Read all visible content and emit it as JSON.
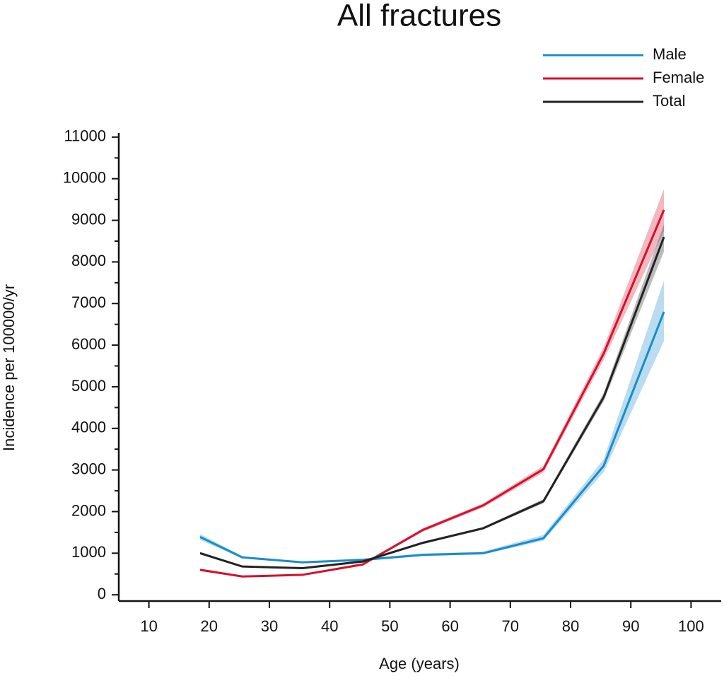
{
  "chart_data": {
    "type": "line",
    "title": "All fractures",
    "x_label": "Age (years)",
    "y_label": "Incidence per 100000/yr",
    "x": [
      18.5,
      25.5,
      35.5,
      45.5,
      55.5,
      65.5,
      75.5,
      85.5,
      95.5
    ],
    "series": [
      {
        "name": "Male",
        "color": "#1a8ccb",
        "values": [
          1390,
          900,
          780,
          840,
          960,
          1000,
          1360,
          3100,
          6800
        ],
        "ci_lower": [
          1320,
          870,
          760,
          810,
          930,
          970,
          1300,
          2950,
          6100
        ],
        "ci_upper": [
          1460,
          930,
          800,
          870,
          990,
          1040,
          1440,
          3260,
          7550
        ]
      },
      {
        "name": "Female",
        "color": "#d4112b",
        "values": [
          600,
          440,
          480,
          730,
          1560,
          2150,
          3020,
          5800,
          9250
        ],
        "ci_lower": [
          570,
          420,
          460,
          700,
          1520,
          2100,
          2940,
          5650,
          8750
        ],
        "ci_upper": [
          630,
          460,
          500,
          760,
          1600,
          2200,
          3100,
          5950,
          9750
        ]
      },
      {
        "name": "Total",
        "color": "#222222",
        "values": [
          1000,
          680,
          640,
          800,
          1250,
          1600,
          2250,
          4750,
          8600
        ],
        "ci_lower": [
          970,
          660,
          620,
          780,
          1220,
          1570,
          2200,
          4650,
          8250
        ],
        "ci_upper": [
          1030,
          700,
          660,
          820,
          1280,
          1630,
          2300,
          4850,
          8900
        ]
      }
    ],
    "xlim": [
      5,
      105
    ],
    "xticks": [
      10,
      20,
      30,
      40,
      50,
      60,
      70,
      80,
      90,
      100
    ],
    "ylim": [
      -150,
      11100
    ],
    "yticks": [
      0,
      1000,
      2000,
      3000,
      4000,
      5000,
      6000,
      7000,
      8000,
      9000,
      10000,
      11000
    ],
    "yminorticks": [
      500,
      1500,
      2500,
      3500,
      4500,
      5500,
      6500,
      7500,
      8500,
      9500,
      10500
    ],
    "legend": "top-right"
  }
}
